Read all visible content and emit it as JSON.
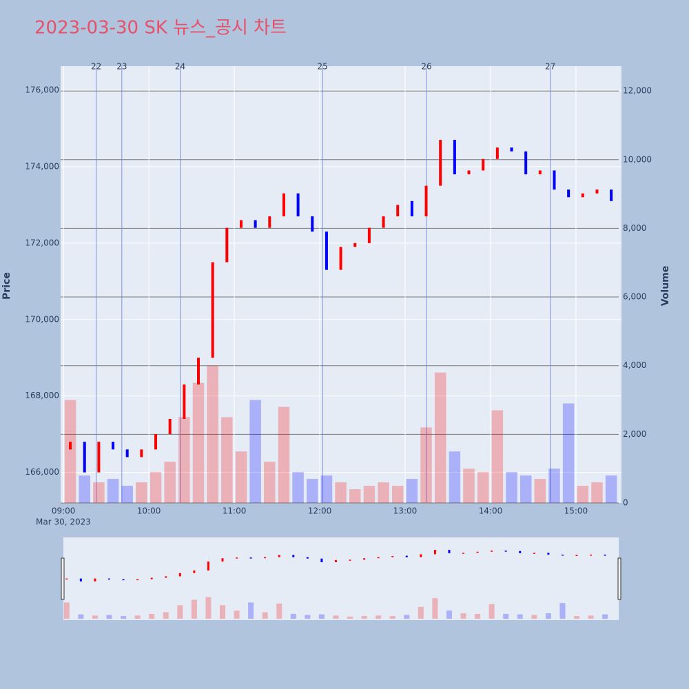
{
  "chart_data": {
    "type": "candlestick",
    "title": "2023-03-30 SK 뉴스_공시 차트",
    "y_label": "Price",
    "y2_label": "Volume",
    "x_date_label": "Mar 30, 2023",
    "x": [
      "09:00",
      "09:10",
      "09:20",
      "09:30",
      "09:40",
      "09:50",
      "10:00",
      "10:10",
      "10:20",
      "10:30",
      "10:40",
      "10:50",
      "11:00",
      "11:10",
      "11:20",
      "11:30",
      "11:40",
      "11:50",
      "12:00",
      "12:10",
      "12:20",
      "12:30",
      "12:40",
      "12:50",
      "13:00",
      "13:10",
      "13:20",
      "13:30",
      "13:40",
      "13:50",
      "14:00",
      "14:10",
      "14:20",
      "14:30",
      "14:40",
      "14:50",
      "15:00",
      "15:10",
      "15:20"
    ],
    "open": [
      166600,
      166800,
      166000,
      166800,
      166600,
      166400,
      166600,
      167000,
      167400,
      168300,
      169000,
      171500,
      172400,
      172600,
      172400,
      172700,
      173300,
      172700,
      172300,
      171300,
      171900,
      172000,
      172400,
      172700,
      173100,
      172700,
      173500,
      174700,
      173800,
      173900,
      174200,
      174500,
      174400,
      173800,
      173900,
      173400,
      173200,
      173300,
      173400
    ],
    "close": [
      166800,
      166000,
      166800,
      166600,
      166400,
      166600,
      167000,
      167400,
      168300,
      169000,
      171500,
      172400,
      172600,
      172400,
      172700,
      173300,
      172700,
      172300,
      171300,
      171900,
      172000,
      172400,
      172700,
      173000,
      172700,
      173500,
      174700,
      173800,
      173900,
      174200,
      174500,
      174400,
      173800,
      173900,
      173400,
      173200,
      173300,
      173400,
      173100
    ],
    "volume": [
      3000,
      800,
      600,
      700,
      500,
      600,
      900,
      1200,
      2500,
      3500,
      4000,
      2500,
      1500,
      3000,
      1200,
      2800,
      900,
      700,
      800,
      600,
      400,
      500,
      600,
      500,
      700,
      2200,
      3800,
      1500,
      1000,
      900,
      2700,
      900,
      800,
      700,
      1000,
      2900,
      500,
      600,
      800
    ],
    "up_color": "#ff0000",
    "down_color": "#0000ff",
    "news": [
      {
        "time": "09:23",
        "label": "22"
      },
      {
        "time": "09:41",
        "label": "23"
      },
      {
        "time": "10:22",
        "label": "24"
      },
      {
        "time": "12:02",
        "label": "25"
      },
      {
        "time": "13:15",
        "label": "26"
      },
      {
        "time": "14:42",
        "label": "27"
      }
    ],
    "xlim": [
      "08:58",
      "15:32"
    ],
    "xticks": [
      "09:00",
      "10:00",
      "11:00",
      "12:00",
      "13:00",
      "14:00",
      "15:00"
    ],
    "ylim": [
      165200,
      176630
    ],
    "yticks": [
      {
        "value": 166000,
        "label": "166,000"
      },
      {
        "value": 168000,
        "label": "168,000"
      },
      {
        "value": 170000,
        "label": "170,000"
      },
      {
        "value": 172000,
        "label": "172,000"
      },
      {
        "value": 174000,
        "label": "174,000"
      },
      {
        "value": 176000,
        "label": "176,000"
      }
    ],
    "y2lim": [
      0,
      12725
    ],
    "y2ticks": [
      0,
      {
        "value": 2000,
        "label": "2,000"
      },
      {
        "value": 4000,
        "label": "4,000"
      },
      {
        "value": 6000,
        "label": "6,000"
      },
      {
        "value": 8000,
        "label": "8,000"
      },
      {
        "value": 10000,
        "label": "10,000"
      },
      {
        "value": 12000,
        "label": "12,000"
      }
    ]
  }
}
